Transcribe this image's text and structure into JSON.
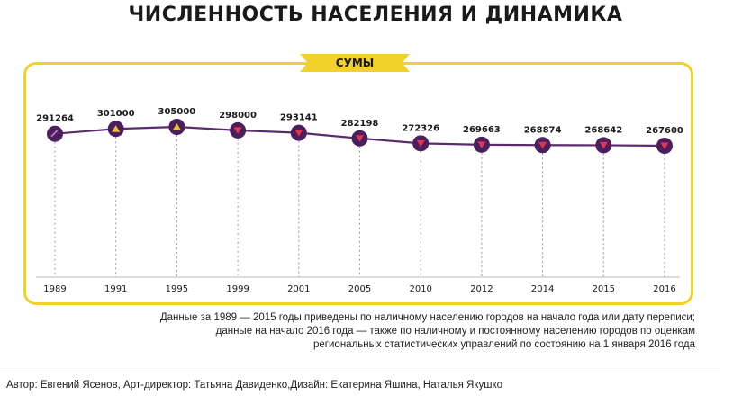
{
  "title": "ЧИСЛЕННОСТЬ НАСЕЛЕНИЯ И ДИНАМИКА",
  "city": "СУМЫ",
  "note_lines": [
    "Данные за 1989 — 2015 годы приведены по наличному населению городов на начало года или дату переписи;",
    "данные на начало 2016 года — также по наличному и постоянному населению городов по оценкам",
    "региональных статистических управлений по состоянию на 1 января 2016 года"
  ],
  "credits": "Автор: Евгений Ясенов, Арт-директор: Татьяна Давиденко,Дизайн: Екатерина Яшина, Наталья Якушко",
  "colors": {
    "frame": "#f2d12b",
    "line": "#5b2a6e",
    "marker": "#4a1f5c",
    "up": "#e6c42e",
    "down": "#e53352",
    "text": "#1a1a1a"
  },
  "chart_data": {
    "type": "line",
    "categories": [
      "1989",
      "1991",
      "1995",
      "1999",
      "2001",
      "2005",
      "2010",
      "2012",
      "2014",
      "2015",
      "2016"
    ],
    "values": [
      291264,
      301000,
      305000,
      298000,
      293141,
      282198,
      272326,
      269663,
      268874,
      268642,
      267600
    ],
    "labels": [
      "291264",
      "301000",
      "305000",
      "298000",
      "293141",
      "282198",
      "272326",
      "269663",
      "268874",
      "268642",
      "267600"
    ],
    "trend": [
      "flat",
      "up",
      "up",
      "down",
      "down",
      "down",
      "down",
      "down",
      "down",
      "down",
      "down"
    ],
    "title": "",
    "xlabel": "",
    "ylabel": "",
    "grid": false
  }
}
